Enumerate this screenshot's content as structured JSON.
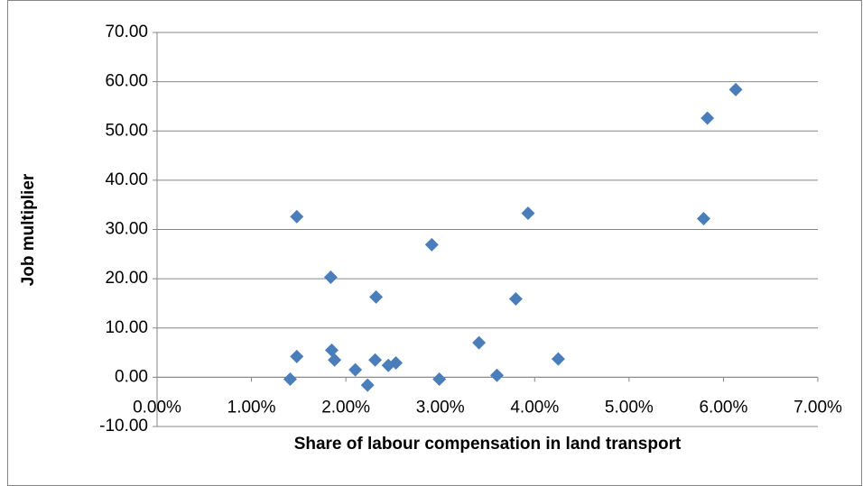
{
  "chart_data": {
    "type": "scatter",
    "x_label": "Share of labour compensation in land transport",
    "y_label": "Job multiplier",
    "series": [
      {
        "color": "#4a7ebb",
        "x": [
          1.41,
          1.48,
          1.48,
          1.84,
          1.85,
          1.88,
          2.1,
          2.23,
          2.32,
          2.31,
          2.45,
          2.53,
          2.91,
          2.99,
          3.41,
          3.6,
          3.8,
          3.93,
          4.25,
          5.79,
          5.83,
          6.13
        ],
        "values": [
          -0.4,
          32.6,
          4.2,
          20.3,
          5.5,
          3.5,
          1.5,
          -1.6,
          16.3,
          3.5,
          2.4,
          2.9,
          26.9,
          -0.4,
          7.0,
          0.4,
          15.9,
          33.3,
          3.7,
          32.2,
          52.6,
          58.4
        ]
      }
    ],
    "xlim": [
      0,
      7
    ],
    "xticks": [
      {
        "value": 0,
        "label": "0.00%"
      },
      {
        "value": 1,
        "label": "1.00%"
      },
      {
        "value": 2,
        "label": "2.00%"
      },
      {
        "value": 3,
        "label": "3.00%"
      },
      {
        "value": 4,
        "label": "4.00%"
      },
      {
        "value": 5,
        "label": "5.00%"
      },
      {
        "value": 6,
        "label": "6.00%"
      },
      {
        "value": 7,
        "label": "7.00%"
      }
    ],
    "ylim": [
      -10,
      70
    ],
    "yticks": [
      {
        "value": -10,
        "label": "-10.00"
      },
      {
        "value": 0,
        "label": "0.00"
      },
      {
        "value": 10,
        "label": "10.00"
      },
      {
        "value": 20,
        "label": "20.00"
      },
      {
        "value": 30,
        "label": "30.00"
      },
      {
        "value": 40,
        "label": "40.00"
      },
      {
        "value": 50,
        "label": "50.00"
      },
      {
        "value": 60,
        "label": "60.00"
      },
      {
        "value": 70,
        "label": "70.00"
      }
    ],
    "grid": true
  }
}
